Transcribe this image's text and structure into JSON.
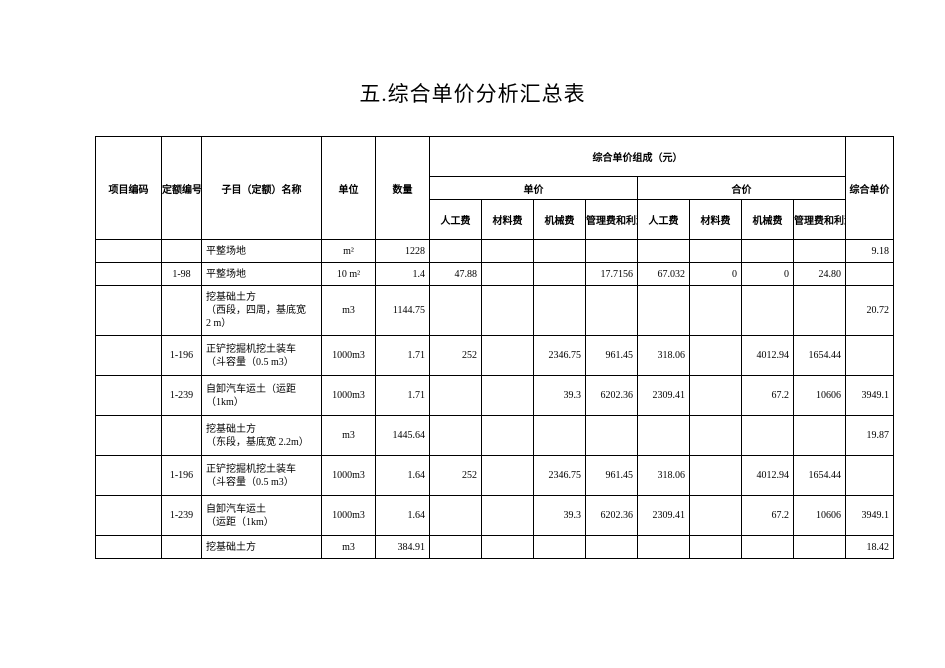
{
  "title": "五.综合单价分析汇总表",
  "headers": {
    "proj": "项目编码",
    "code": "定额编号",
    "name": "子目（定额）名称",
    "unit": "单位",
    "qty": "数量",
    "comp": "综合单价组成（元）",
    "total": "综合单价",
    "sub_unit": "单价",
    "sub_sum": "合价",
    "labor": "人工费",
    "material": "材料费",
    "machine": "机械费",
    "profit": "管理费和利润"
  },
  "rows": [
    {
      "code": "",
      "name": "平整场地",
      "unit": "m²",
      "qty": "1228",
      "u_l": "",
      "u_m": "",
      "u_j": "",
      "u_p": "",
      "s_l": "",
      "s_m": "",
      "s_j": "",
      "s_p": "",
      "total": "9.18",
      "h": ""
    },
    {
      "code": "1-98",
      "name": "平整场地",
      "unit": "10 m²",
      "qty": "1.4",
      "u_l": "47.88",
      "u_m": "",
      "u_j": "",
      "u_p": "17.7156",
      "s_l": "67.032",
      "s_m": "0",
      "s_j": "0",
      "s_p": "24.80",
      "total": "",
      "h": ""
    },
    {
      "code": "",
      "name": "挖基础土方\n（西段，四周，基底宽\n2 m）",
      "unit": "m3",
      "qty": "1144.75",
      "u_l": "",
      "u_m": "",
      "u_j": "",
      "u_p": "",
      "s_l": "",
      "s_m": "",
      "s_j": "",
      "s_p": "",
      "total": "20.72",
      "h": "h-50"
    },
    {
      "code": "1-196",
      "name": "正铲挖掘机挖土装车\n（斗容量（0.5 m3）",
      "unit": "1000m3",
      "qty": "1.71",
      "u_l": "252",
      "u_m": "",
      "u_j": "2346.75",
      "u_p": "961.45",
      "s_l": "318.06",
      "s_m": "",
      "s_j": "4012.94",
      "s_p": "1654.44",
      "total": "",
      "h": "h-40"
    },
    {
      "code": "1-239",
      "name": "自卸汽车运土（运距\n（1km）",
      "unit": "1000m3",
      "qty": "1.71",
      "u_l": "",
      "u_m": "",
      "u_j": "39.3",
      "u_p": "6202.36",
      "s_l": "2309.41",
      "s_m": "",
      "s_j": "67.2",
      "s_p": "10606",
      "total": "3949.1",
      "h": "h-40"
    },
    {
      "code": "",
      "name": "挖基础土方\n（东段，基底宽 2.2m）",
      "unit": "m3",
      "qty": "1445.64",
      "u_l": "",
      "u_m": "",
      "u_j": "",
      "u_p": "",
      "s_l": "",
      "s_m": "",
      "s_j": "",
      "s_p": "",
      "total": "19.87",
      "h": "h-40"
    },
    {
      "code": "1-196",
      "name": "正铲挖掘机挖土装车\n（斗容量（0.5 m3）",
      "unit": "1000m3",
      "qty": "1.64",
      "u_l": "252",
      "u_m": "",
      "u_j": "2346.75",
      "u_p": "961.45",
      "s_l": "318.06",
      "s_m": "",
      "s_j": "4012.94",
      "s_p": "1654.44",
      "total": "",
      "h": "h-40"
    },
    {
      "code": "1-239",
      "name": "自卸汽车运土\n（运距（1km）",
      "unit": "1000m3",
      "qty": "1.64",
      "u_l": "",
      "u_m": "",
      "u_j": "39.3",
      "u_p": "6202.36",
      "s_l": "2309.41",
      "s_m": "",
      "s_j": "67.2",
      "s_p": "10606",
      "total": "3949.1",
      "h": "h-40"
    },
    {
      "code": "",
      "name": "挖基础土方",
      "unit": "m3",
      "qty": "384.91",
      "u_l": "",
      "u_m": "",
      "u_j": "",
      "u_p": "",
      "s_l": "",
      "s_m": "",
      "s_j": "",
      "s_p": "",
      "total": "18.42",
      "h": ""
    }
  ]
}
